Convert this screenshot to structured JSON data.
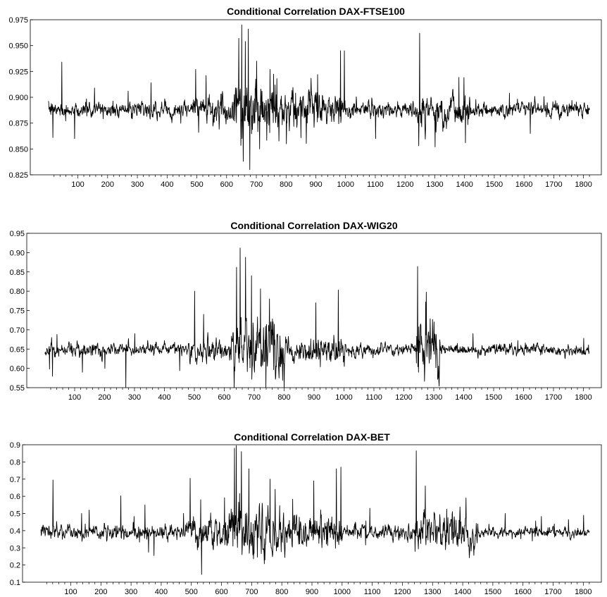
{
  "chart_data": [
    {
      "type": "line",
      "title": "Conditional Correlation DAX-FTSE100",
      "xlabel": "",
      "ylabel": "",
      "xlim": [
        -60,
        1860
      ],
      "ylim": [
        0.825,
        0.975
      ],
      "x_ticks": [
        100,
        200,
        300,
        400,
        500,
        600,
        700,
        800,
        900,
        1000,
        1100,
        1200,
        1300,
        1400,
        1500,
        1600,
        1700,
        1800
      ],
      "y_ticks": [
        "0.825",
        "0.850",
        "0.875",
        "0.900",
        "0.925",
        "0.950",
        "0.975"
      ],
      "grid": false,
      "series_color": "#000000",
      "n_points": 1820,
      "baseline": 0.888,
      "noise": 0.0035,
      "regimes": [
        {
          "from": 0,
          "to": 480,
          "noise": 0.003
        },
        {
          "from": 480,
          "to": 620,
          "noise": 0.006
        },
        {
          "from": 620,
          "to": 780,
          "noise": 0.013
        },
        {
          "from": 780,
          "to": 1000,
          "noise": 0.007
        },
        {
          "from": 1000,
          "to": 1240,
          "noise": 0.0035
        },
        {
          "from": 1240,
          "to": 1420,
          "noise": 0.007
        },
        {
          "from": 1420,
          "to": 1820,
          "noise": 0.003
        }
      ],
      "spikes": [
        {
          "x": 15,
          "y": 0.861
        },
        {
          "x": 45,
          "y": 0.934
        },
        {
          "x": 88,
          "y": 0.86
        },
        {
          "x": 155,
          "y": 0.909
        },
        {
          "x": 268,
          "y": 0.906
        },
        {
          "x": 345,
          "y": 0.914
        },
        {
          "x": 495,
          "y": 0.927
        },
        {
          "x": 505,
          "y": 0.866
        },
        {
          "x": 530,
          "y": 0.921
        },
        {
          "x": 640,
          "y": 0.957
        },
        {
          "x": 650,
          "y": 0.97
        },
        {
          "x": 655,
          "y": 0.838
        },
        {
          "x": 662,
          "y": 0.954
        },
        {
          "x": 672,
          "y": 0.966
        },
        {
          "x": 677,
          "y": 0.83
        },
        {
          "x": 700,
          "y": 0.935
        },
        {
          "x": 710,
          "y": 0.85
        },
        {
          "x": 745,
          "y": 0.927
        },
        {
          "x": 768,
          "y": 0.918
        },
        {
          "x": 800,
          "y": 0.855
        },
        {
          "x": 905,
          "y": 0.922
        },
        {
          "x": 982,
          "y": 0.945
        },
        {
          "x": 995,
          "y": 0.945
        },
        {
          "x": 1100,
          "y": 0.86
        },
        {
          "x": 1245,
          "y": 0.853
        },
        {
          "x": 1248,
          "y": 0.962
        },
        {
          "x": 1300,
          "y": 0.852
        },
        {
          "x": 1402,
          "y": 0.856
        },
        {
          "x": 1550,
          "y": 0.904
        },
        {
          "x": 1620,
          "y": 0.865
        },
        {
          "x": 1760,
          "y": 0.897
        }
      ]
    },
    {
      "type": "line",
      "title": "Conditional Correlation DAX-WIG20",
      "xlabel": "",
      "ylabel": "",
      "xlim": [
        -60,
        1860
      ],
      "ylim": [
        0.55,
        0.95
      ],
      "x_ticks": [
        100,
        200,
        300,
        400,
        500,
        600,
        700,
        800,
        900,
        1000,
        1100,
        1200,
        1300,
        1400,
        1500,
        1600,
        1700,
        1800
      ],
      "y_ticks": [
        "0.55",
        "0.60",
        "0.65",
        "0.70",
        "0.75",
        "0.80",
        "0.85",
        "0.90",
        "0.95"
      ],
      "grid": false,
      "series_color": "#000000",
      "n_points": 1820,
      "baseline": 0.648,
      "noise": 0.006,
      "regimes": [
        {
          "from": 0,
          "to": 480,
          "noise": 0.007
        },
        {
          "from": 480,
          "to": 620,
          "noise": 0.012
        },
        {
          "from": 620,
          "to": 800,
          "noise": 0.03
        },
        {
          "from": 800,
          "to": 1000,
          "noise": 0.014
        },
        {
          "from": 1000,
          "to": 1240,
          "noise": 0.006
        },
        {
          "from": 1240,
          "to": 1320,
          "noise": 0.03
        },
        {
          "from": 1320,
          "to": 1820,
          "noise": 0.006
        }
      ],
      "spikes": [
        {
          "x": 15,
          "y": 0.598
        },
        {
          "x": 25,
          "y": 0.58
        },
        {
          "x": 40,
          "y": 0.688
        },
        {
          "x": 125,
          "y": 0.59
        },
        {
          "x": 200,
          "y": 0.6
        },
        {
          "x": 270,
          "y": 0.55
        },
        {
          "x": 300,
          "y": 0.69
        },
        {
          "x": 500,
          "y": 0.8
        },
        {
          "x": 530,
          "y": 0.74
        },
        {
          "x": 640,
          "y": 0.862
        },
        {
          "x": 652,
          "y": 0.912
        },
        {
          "x": 670,
          "y": 0.888
        },
        {
          "x": 690,
          "y": 0.84
        },
        {
          "x": 700,
          "y": 0.59
        },
        {
          "x": 720,
          "y": 0.806
        },
        {
          "x": 750,
          "y": 0.78
        },
        {
          "x": 905,
          "y": 0.77
        },
        {
          "x": 980,
          "y": 0.803
        },
        {
          "x": 1000,
          "y": 0.605
        },
        {
          "x": 1245,
          "y": 0.864
        },
        {
          "x": 1248,
          "y": 0.59
        },
        {
          "x": 1272,
          "y": 0.772
        },
        {
          "x": 1430,
          "y": 0.69
        },
        {
          "x": 1800,
          "y": 0.678
        }
      ]
    },
    {
      "type": "line",
      "title": "Conditional Correlation DAX-BET",
      "xlabel": "",
      "ylabel": "",
      "xlim": [
        -60,
        1860
      ],
      "ylim": [
        0.1,
        0.9
      ],
      "x_ticks": [
        100,
        200,
        300,
        400,
        500,
        600,
        700,
        800,
        900,
        1000,
        1100,
        1200,
        1300,
        1400,
        1500,
        1600,
        1700,
        1800
      ],
      "y_ticks": [
        "0.1",
        "0.2",
        "0.3",
        "0.4",
        "0.5",
        "0.6",
        "0.7",
        "0.8",
        "0.9"
      ],
      "grid": false,
      "series_color": "#000000",
      "n_points": 1820,
      "baseline": 0.39,
      "noise": 0.012,
      "regimes": [
        {
          "from": 0,
          "to": 480,
          "noise": 0.018
        },
        {
          "from": 480,
          "to": 620,
          "noise": 0.035
        },
        {
          "from": 620,
          "to": 820,
          "noise": 0.07
        },
        {
          "from": 820,
          "to": 1000,
          "noise": 0.04
        },
        {
          "from": 1000,
          "to": 1240,
          "noise": 0.018
        },
        {
          "from": 1240,
          "to": 1450,
          "noise": 0.045
        },
        {
          "from": 1450,
          "to": 1820,
          "noise": 0.012
        }
      ],
      "spikes": [
        {
          "x": 40,
          "y": 0.695
        },
        {
          "x": 135,
          "y": 0.5
        },
        {
          "x": 160,
          "y": 0.52
        },
        {
          "x": 265,
          "y": 0.603
        },
        {
          "x": 345,
          "y": 0.55
        },
        {
          "x": 375,
          "y": 0.255
        },
        {
          "x": 495,
          "y": 0.705
        },
        {
          "x": 530,
          "y": 0.58
        },
        {
          "x": 533,
          "y": 0.145
        },
        {
          "x": 642,
          "y": 0.88
        },
        {
          "x": 648,
          "y": 0.895
        },
        {
          "x": 665,
          "y": 0.86
        },
        {
          "x": 690,
          "y": 0.76
        },
        {
          "x": 760,
          "y": 0.7
        },
        {
          "x": 905,
          "y": 0.69
        },
        {
          "x": 980,
          "y": 0.76
        },
        {
          "x": 995,
          "y": 0.77
        },
        {
          "x": 1245,
          "y": 0.865
        },
        {
          "x": 1275,
          "y": 0.66
        },
        {
          "x": 1410,
          "y": 0.59
        },
        {
          "x": 1540,
          "y": 0.5
        },
        {
          "x": 1800,
          "y": 0.49
        }
      ]
    }
  ]
}
